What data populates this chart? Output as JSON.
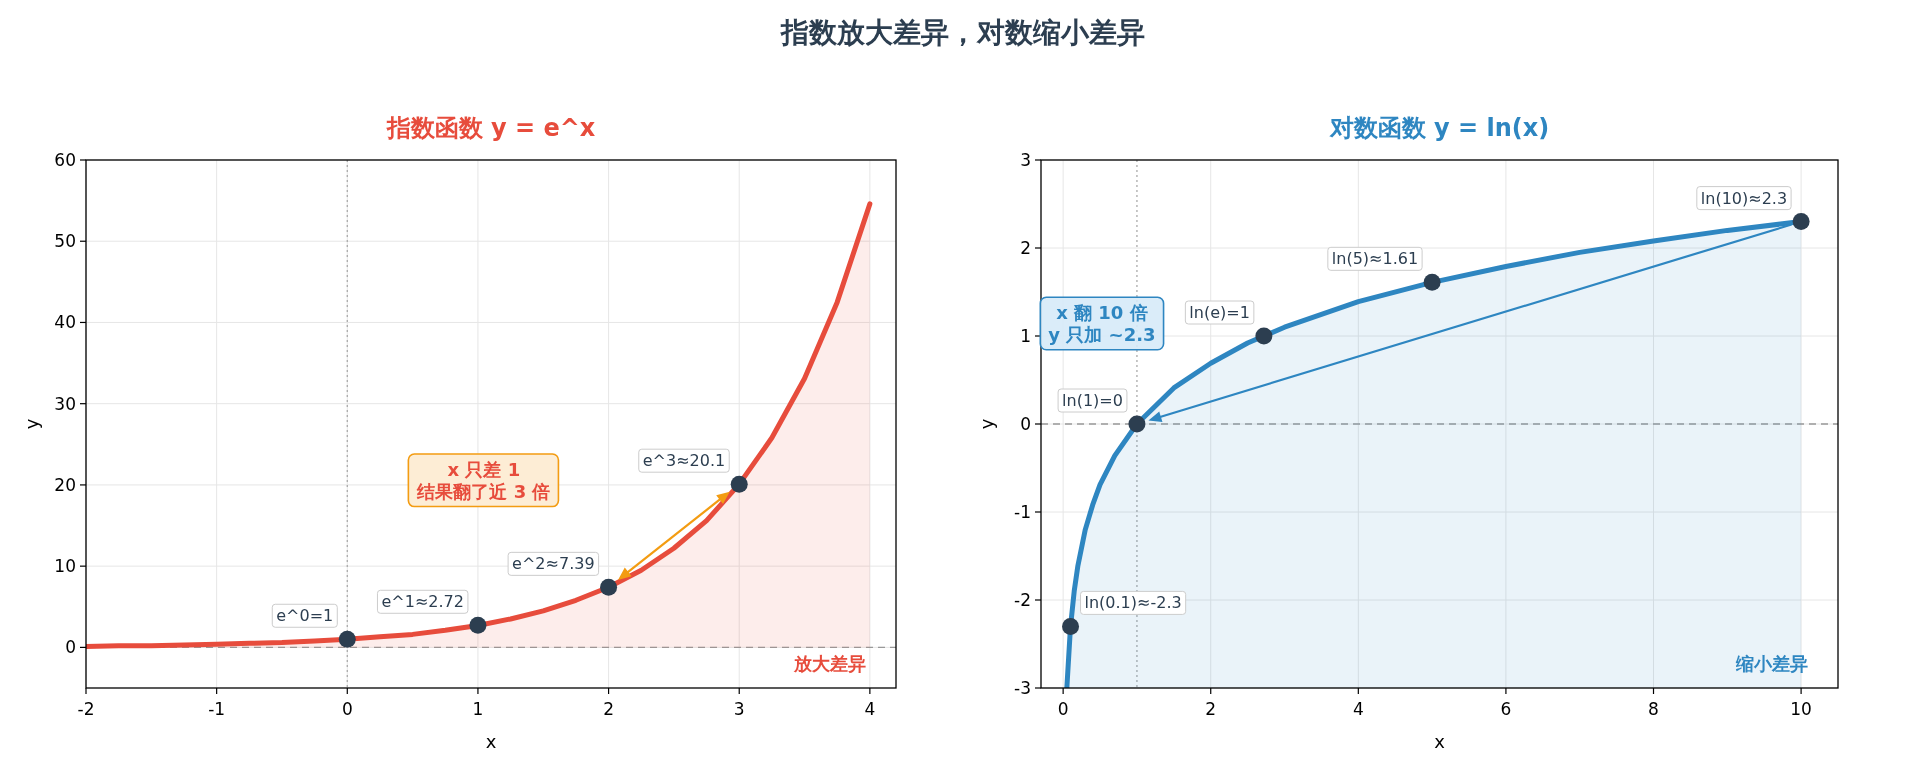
{
  "chart_data": [
    {
      "type": "line",
      "title": "指数函数  y = e^x",
      "xlabel": "x",
      "ylabel": "y",
      "xlim": [
        -2,
        4.2
      ],
      "ylim": [
        -5,
        60
      ],
      "xticks": [
        -2,
        -1,
        0,
        1,
        2,
        3,
        4
      ],
      "yticks": [
        0,
        10,
        20,
        30,
        40,
        50,
        60
      ],
      "grid": true,
      "series": [
        {
          "type": "area",
          "color": "#e74c3c",
          "x": [
            -2,
            -1.75,
            -1.5,
            -1.25,
            -1,
            -0.75,
            -0.5,
            -0.25,
            0,
            0.25,
            0.5,
            0.75,
            1,
            1.25,
            1.5,
            1.75,
            2,
            2.25,
            2.5,
            2.75,
            3,
            3.25,
            3.5,
            3.75,
            4
          ],
          "values": [
            0.1,
            0.2,
            0.2,
            0.3,
            0.4,
            0.5,
            0.6,
            0.8,
            1,
            1.3,
            1.6,
            2.1,
            2.7,
            3.5,
            4.5,
            5.8,
            7.4,
            9.5,
            12.2,
            15.6,
            20.1,
            25.8,
            33.1,
            42.5,
            54.6
          ]
        },
        {
          "type": "scatter",
          "color": "#2c3e50",
          "x": [
            0,
            1,
            2,
            3
          ],
          "values": [
            1,
            2.72,
            7.39,
            20.09
          ],
          "value_labels": [
            "e^0=1",
            "e^1≈2.72",
            "e^2≈7.39",
            "e^3≈20.1"
          ]
        }
      ],
      "ref_lines": [
        {
          "axis": "y",
          "value": 0,
          "line_style": "dashed",
          "color": "#999999"
        },
        {
          "axis": "x",
          "value": 0,
          "line_style": "dotted",
          "color": "#aaaaaa"
        }
      ],
      "annotations": [
        "x 只差 1\n结果翻了近 3 倍",
        "放大差异",
        "指数放大差异，对数缩小差异"
      ]
    },
    {
      "type": "line",
      "title": "对数函数  y = ln(x)",
      "xlabel": "x",
      "ylabel": "y",
      "xlim": [
        -0.3,
        10.5
      ],
      "ylim": [
        -3,
        3
      ],
      "xticks": [
        0,
        2,
        4,
        6,
        8,
        10
      ],
      "yticks": [
        -3,
        -2,
        -1,
        0,
        1,
        2,
        3
      ],
      "grid": true,
      "series": [
        {
          "type": "area",
          "color": "#2e86c1",
          "x": [
            0.05,
            0.1,
            0.15,
            0.2,
            0.3,
            0.4,
            0.5,
            0.7,
            1,
            1.5,
            2,
            2.5,
            3,
            4,
            5,
            6,
            7,
            8,
            9,
            10
          ],
          "values": [
            -3,
            -2.3,
            -1.9,
            -1.61,
            -1.2,
            -0.92,
            -0.69,
            -0.36,
            0,
            0.41,
            0.69,
            0.92,
            1.1,
            1.39,
            1.61,
            1.79,
            1.95,
            2.08,
            2.2,
            2.3
          ]
        },
        {
          "type": "scatter",
          "color": "#2c3e50",
          "x": [
            0.1,
            1,
            2.72,
            5,
            10
          ],
          "values": [
            -2.3,
            0,
            1,
            1.61,
            2.3
          ],
          "value_labels": [
            "ln(0.1)≈-2.3",
            "ln(1)=0",
            "ln(e)=1",
            "ln(5)≈1.61",
            "ln(10)≈2.3"
          ]
        }
      ],
      "ref_lines": [
        {
          "axis": "y",
          "value": 0,
          "line_style": "dashed",
          "color": "#999999"
        },
        {
          "axis": "x",
          "value": 1,
          "line_style": "dotted",
          "color": "#aaaaaa"
        }
      ],
      "annotations": [
        "x 翻 10 倍\ny 只加 ~2.3",
        "缩小差异"
      ]
    }
  ]
}
